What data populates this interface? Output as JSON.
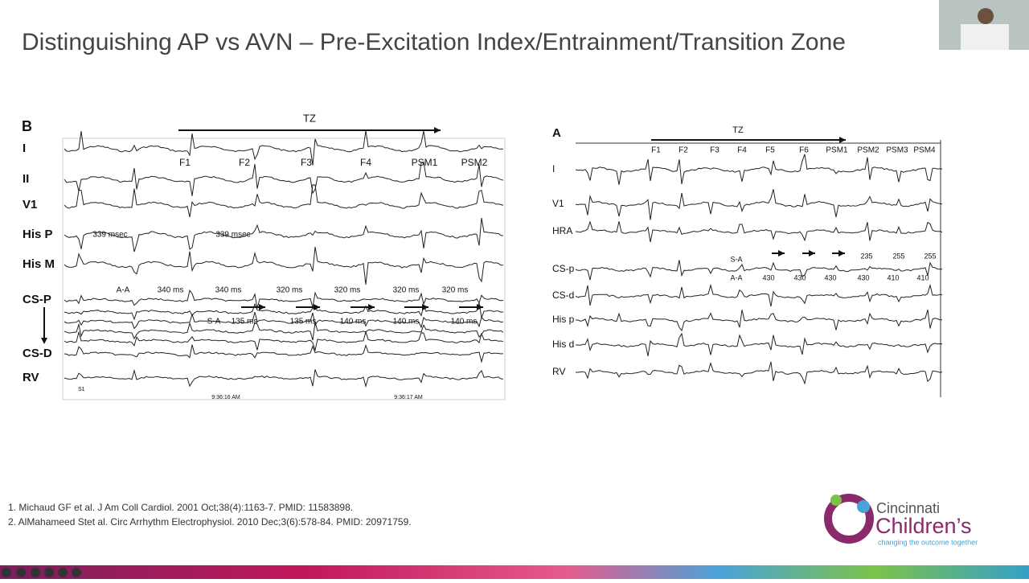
{
  "slide": {
    "title": "Distinguishing AP vs AVN – Pre-Excitation Index/Entrainment/Transition Zone"
  },
  "panel_b": {
    "label": "B",
    "tz": "TZ",
    "channels": [
      "I",
      "II",
      "V1",
      "His P",
      "His M",
      "CS-P",
      "CS-D",
      "RV"
    ],
    "beat_labels": [
      "F1",
      "F2",
      "F3",
      "F4",
      "PSM1",
      "PSM2"
    ],
    "his_labels": [
      "339 msec",
      "339 msec"
    ],
    "aa_label": "A-A",
    "aa_intervals": [
      "340 ms",
      "340 ms",
      "320 ms",
      "320 ms",
      "320 ms",
      "320 ms"
    ],
    "sa_label": "S-A",
    "sa_intervals": [
      "135 ms",
      "135 ms",
      "140 ms",
      "140 ms",
      "140 ms"
    ],
    "marker": "S1",
    "times": [
      "9:36:16 AM",
      "9:36:17 AM"
    ]
  },
  "panel_a": {
    "label": "A",
    "tz": "TZ",
    "channels": [
      "I",
      "V1",
      "HRA",
      "CS-p",
      "CS-d",
      "His p",
      "His d",
      "RV"
    ],
    "beat_labels": [
      "F1",
      "F2",
      "F3",
      "F4",
      "F5",
      "F6",
      "PSM1",
      "PSM2",
      "PSM3",
      "PSM4"
    ],
    "sa_label": "S-A",
    "sa_intervals": [
      "235",
      "255",
      "255"
    ],
    "aa_label": "A-A",
    "aa_intervals": [
      "430",
      "430",
      "430",
      "430",
      "410",
      "410"
    ]
  },
  "references": [
    "1. Michaud GF et al. J Am Coll Cardiol. 2001 Oct;38(4):1163-7. PMID: 11583898.",
    "2. AlMahameed Stet al. Circ Arrhythm Electrophysiol. 2010 Dec;3(6):578-84. PMID: 20971759."
  ],
  "logo": {
    "name1": "Cincinnati",
    "name2": "Children’s",
    "tagline": "changing the outcome together"
  }
}
